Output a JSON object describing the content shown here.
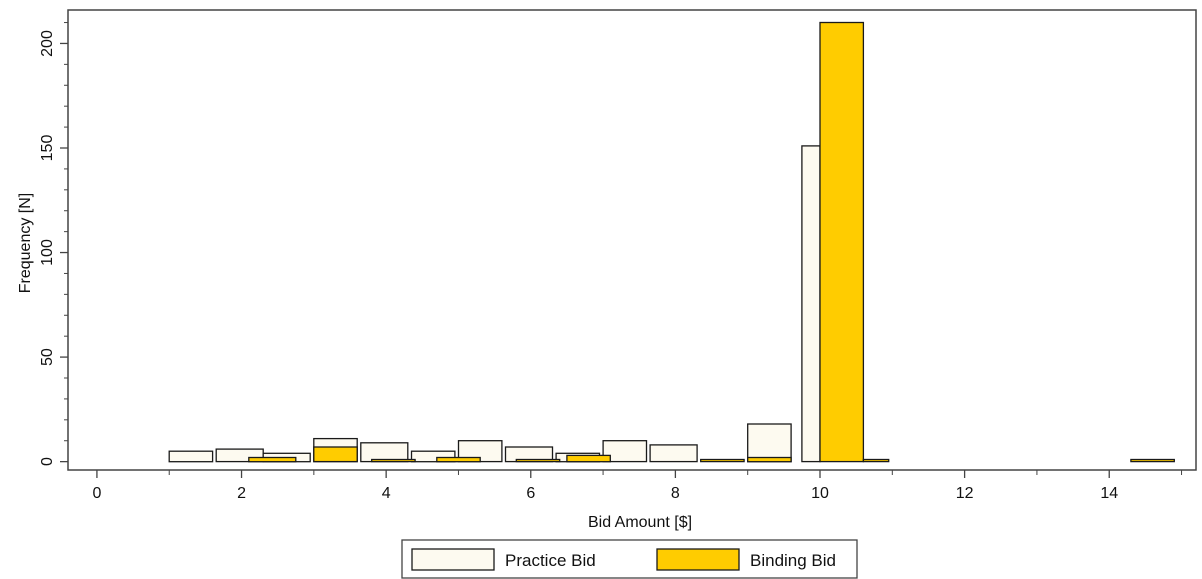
{
  "chart_data": {
    "type": "bar",
    "title": "",
    "xlabel": "Bid Amount [$]",
    "ylabel": "Frequency [N]",
    "xlim": [
      -0.4,
      15.2
    ],
    "ylim": [
      -4,
      216
    ],
    "x_ticks": [
      0,
      2,
      4,
      6,
      8,
      10,
      12,
      14
    ],
    "y_ticks": [
      0,
      50,
      100,
      150,
      200
    ],
    "grid": false,
    "legend_position": "bottom-center",
    "series": [
      {
        "name": "Practice Bid",
        "color": "#fdfaf0",
        "edge": "#1a1a1a",
        "bars": [
          {
            "x0": 1.0,
            "x1": 1.6,
            "value": 5
          },
          {
            "x0": 1.65,
            "x1": 2.3,
            "value": 6
          },
          {
            "x0": 2.3,
            "x1": 2.95,
            "value": 4
          },
          {
            "x0": 3.0,
            "x1": 3.6,
            "value": 11
          },
          {
            "x0": 3.65,
            "x1": 4.3,
            "value": 9
          },
          {
            "x0": 4.35,
            "x1": 4.95,
            "value": 5
          },
          {
            "x0": 5.0,
            "x1": 5.6,
            "value": 10
          },
          {
            "x0": 5.65,
            "x1": 6.3,
            "value": 7
          },
          {
            "x0": 6.35,
            "x1": 6.95,
            "value": 4
          },
          {
            "x0": 7.0,
            "x1": 7.6,
            "value": 10
          },
          {
            "x0": 7.65,
            "x1": 8.3,
            "value": 8
          },
          {
            "x0": 9.0,
            "x1": 9.6,
            "value": 18
          },
          {
            "x0": 9.75,
            "x1": 10.0,
            "value": 151
          }
        ]
      },
      {
        "name": "Binding Bid",
        "color": "#ffcc00",
        "edge": "#1a1a1a",
        "bars": [
          {
            "x0": 2.1,
            "x1": 2.75,
            "value": 2
          },
          {
            "x0": 3.0,
            "x1": 3.6,
            "value": 7
          },
          {
            "x0": 3.8,
            "x1": 4.4,
            "value": 1
          },
          {
            "x0": 4.7,
            "x1": 5.3,
            "value": 2
          },
          {
            "x0": 5.8,
            "x1": 6.4,
            "value": 1
          },
          {
            "x0": 6.5,
            "x1": 7.1,
            "value": 3
          },
          {
            "x0": 8.35,
            "x1": 8.95,
            "value": 1
          },
          {
            "x0": 9.0,
            "x1": 9.6,
            "value": 2
          },
          {
            "x0": 10.0,
            "x1": 10.6,
            "value": 210
          },
          {
            "x0": 10.6,
            "x1": 10.95,
            "value": 1
          },
          {
            "x0": 14.3,
            "x1": 14.9,
            "value": 1
          }
        ]
      }
    ]
  }
}
